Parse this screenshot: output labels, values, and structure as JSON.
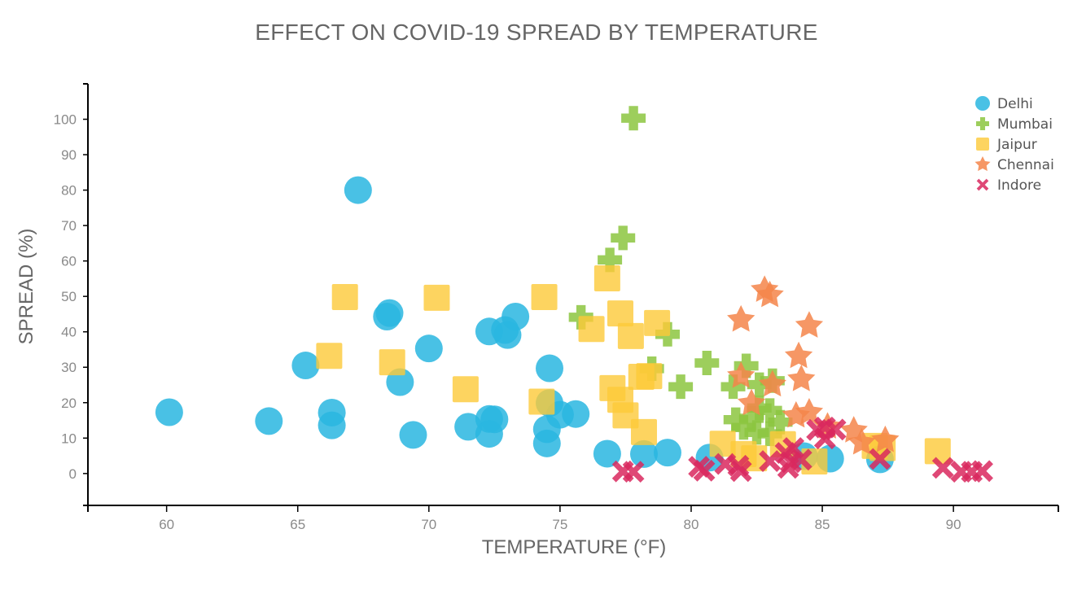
{
  "chart_data": {
    "type": "scatter",
    "title": "EFFECT ON COVID-19 SPREAD BY TEMPERATURE",
    "xlabel": "TEMPERATURE (°F)",
    "ylabel": "SPREAD (%)",
    "xlim": [
      57,
      94
    ],
    "ylim": [
      -9,
      110
    ],
    "xticks": [
      60,
      65,
      70,
      75,
      80,
      85,
      90
    ],
    "yticks": [
      0,
      10,
      20,
      30,
      40,
      50,
      60,
      70,
      80,
      90,
      100
    ],
    "grid": false,
    "legend_position": "top-right",
    "series": [
      {
        "name": "Delhi",
        "marker": "circle",
        "color": "#29b6e0",
        "points": [
          [
            60.1,
            17.3
          ],
          [
            63.9,
            14.8
          ],
          [
            65.3,
            30.5
          ],
          [
            66.3,
            17.2
          ],
          [
            66.3,
            13.6
          ],
          [
            67.3,
            80
          ],
          [
            68.4,
            44.3
          ],
          [
            68.5,
            45.3
          ],
          [
            68.9,
            25.8
          ],
          [
            69.4,
            10.9
          ],
          [
            70.0,
            35.3
          ],
          [
            71.5,
            13.2
          ],
          [
            72.3,
            40.1
          ],
          [
            72.3,
            11.2
          ],
          [
            72.3,
            15.4
          ],
          [
            72.5,
            15.3
          ],
          [
            72.9,
            40.5
          ],
          [
            73.0,
            39.1
          ],
          [
            73.3,
            44.3
          ],
          [
            74.5,
            8.5
          ],
          [
            74.5,
            12.5
          ],
          [
            74.6,
            29.7
          ],
          [
            74.6,
            19.9
          ],
          [
            75.0,
            16.6
          ],
          [
            75.6,
            16.8
          ],
          [
            76.8,
            5.6
          ],
          [
            78.2,
            5.5
          ],
          [
            79.1,
            5.9
          ],
          [
            80.7,
            4.5
          ],
          [
            84.3,
            4.9
          ],
          [
            85.3,
            4.2
          ],
          [
            87.2,
            4.0
          ]
        ]
      },
      {
        "name": "Mumbai",
        "marker": "plus",
        "color": "#8cc63f",
        "points": [
          [
            77.8,
            100.3
          ],
          [
            77.4,
            66.5
          ],
          [
            76.9,
            60.3
          ],
          [
            75.8,
            44.1
          ],
          [
            79.1,
            39.3
          ],
          [
            78.5,
            29.6
          ],
          [
            79.6,
            24.5
          ],
          [
            80.6,
            31.2
          ],
          [
            81.6,
            24.5
          ],
          [
            82.1,
            30.4
          ],
          [
            82.6,
            25.1
          ],
          [
            83.1,
            26.2
          ],
          [
            82.3,
            15.6
          ],
          [
            82.6,
            18.5
          ],
          [
            83.0,
            17.8
          ],
          [
            82.0,
            13.0
          ],
          [
            82.5,
            11.6
          ],
          [
            83.0,
            11.2
          ],
          [
            81.7,
            15.2
          ],
          [
            83.4,
            14.5
          ]
        ]
      },
      {
        "name": "Jaipur",
        "marker": "square",
        "color": "#fdc938",
        "points": [
          [
            66.8,
            49.8
          ],
          [
            66.2,
            33.2
          ],
          [
            68.6,
            31.4
          ],
          [
            70.3,
            49.6
          ],
          [
            71.4,
            23.8
          ],
          [
            74.4,
            49.8
          ],
          [
            74.3,
            20.3
          ],
          [
            76.2,
            40.8
          ],
          [
            76.8,
            55.1
          ],
          [
            77.3,
            45.2
          ],
          [
            77.7,
            38.8
          ],
          [
            78.7,
            42.5
          ],
          [
            77.0,
            24.1
          ],
          [
            77.3,
            20.8
          ],
          [
            77.5,
            16.4
          ],
          [
            78.1,
            27.3
          ],
          [
            78.4,
            27.5
          ],
          [
            78.2,
            11.7
          ],
          [
            81.2,
            8.4
          ],
          [
            82.0,
            5.5
          ],
          [
            82.4,
            4.3
          ],
          [
            83.5,
            8.3
          ],
          [
            84.7,
            3.4
          ],
          [
            87.0,
            7.8
          ],
          [
            87.3,
            7.2
          ],
          [
            89.4,
            6.3
          ]
        ]
      },
      {
        "name": "Chennai",
        "marker": "star",
        "color": "#f4854a",
        "points": [
          [
            82.8,
            51.8
          ],
          [
            83.0,
            50.3
          ],
          [
            81.9,
            43.4
          ],
          [
            84.5,
            41.7
          ],
          [
            84.1,
            33.1
          ],
          [
            84.2,
            26.6
          ],
          [
            81.9,
            27.5
          ],
          [
            83.1,
            25.1
          ],
          [
            82.3,
            19.8
          ],
          [
            84.0,
            16.3
          ],
          [
            84.5,
            17.2
          ],
          [
            85.2,
            13.2
          ],
          [
            86.2,
            12.1
          ],
          [
            86.5,
            8.7
          ],
          [
            87.4,
            9.4
          ]
        ]
      },
      {
        "name": "Indore",
        "marker": "x",
        "color": "#d9285e",
        "points": [
          [
            77.4,
            0.6
          ],
          [
            77.8,
            0.5
          ],
          [
            80.3,
            1.9
          ],
          [
            80.5,
            0.8
          ],
          [
            81.3,
            2.7
          ],
          [
            81.8,
            2.2
          ],
          [
            81.9,
            0.7
          ],
          [
            83.0,
            3.5
          ],
          [
            83.6,
            5.8
          ],
          [
            83.8,
            3.2
          ],
          [
            83.7,
            1.6
          ],
          [
            83.9,
            7.2
          ],
          [
            84.2,
            3.9
          ],
          [
            84.8,
            12.3
          ],
          [
            85.1,
            13.0
          ],
          [
            85.1,
            9.9
          ],
          [
            85.5,
            12.4
          ],
          [
            87.2,
            4.1
          ],
          [
            89.6,
            1.6
          ],
          [
            90.3,
            0.5
          ],
          [
            90.7,
            0.5
          ],
          [
            91.1,
            0.7
          ]
        ]
      }
    ]
  }
}
